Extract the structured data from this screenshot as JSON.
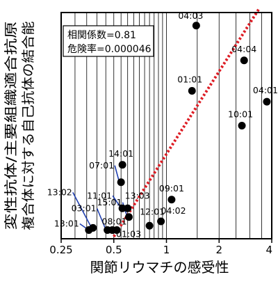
{
  "chart_data": {
    "type": "scatter",
    "xlabel": "関節リウマチの感受性",
    "ylabel_lines": [
      "変性抗体/主要組織適合抗原",
      "複合体に対する自己抗体の結合能"
    ],
    "xscale": "log",
    "xlim": [
      0.25,
      4
    ],
    "xticks": [
      {
        "value": 0.25,
        "label": "0.25"
      },
      {
        "value": 0.5,
        "label": "0.5"
      },
      {
        "value": 1,
        "label": "1"
      },
      {
        "value": 2,
        "label": "2"
      },
      {
        "value": 4,
        "label": "4"
      }
    ],
    "stats_box": {
      "line1": "相関係数=0.81",
      "line2": "危険率=0.000046"
    },
    "colors": {
      "point": "#000000",
      "trend": "#dd1c24",
      "leader": "#1f3fb0"
    },
    "points": [
      {
        "label": "04:03",
        "x": 1.48,
        "y": 0.94
      },
      {
        "label": "04:04",
        "x": 2.78,
        "y": 0.78
      },
      {
        "label": "04:01",
        "x": 3.75,
        "y": 0.59
      },
      {
        "label": "01:01",
        "x": 1.4,
        "y": 0.64
      },
      {
        "label": "10:01",
        "x": 2.7,
        "y": 0.48
      },
      {
        "label": "14:01",
        "x": 0.56,
        "y": 0.3
      },
      {
        "label": "07:01",
        "x": 0.55,
        "y": 0.22
      },
      {
        "label": "09:01",
        "x": 1.07,
        "y": 0.14
      },
      {
        "label": "11:01",
        "x": 0.56,
        "y": 0.1
      },
      {
        "label": "13:03",
        "x": 0.6,
        "y": 0.1
      },
      {
        "label": "15:01",
        "x": 0.61,
        "y": 0.06
      },
      {
        "label": "12:01",
        "x": 0.8,
        "y": 0.02
      },
      {
        "label": "04:02",
        "x": 0.93,
        "y": 0.04
      },
      {
        "label": "13:02",
        "x": 0.38,
        "y": 0.01
      },
      {
        "label": "03:01",
        "x": 0.46,
        "y": 0.0
      },
      {
        "label": "13:01",
        "x": 0.36,
        "y": 0.0
      },
      {
        "label": "08:01",
        "x": 0.49,
        "y": 0.0
      },
      {
        "label": "01:03",
        "x": 0.52,
        "y": 0.0
      }
    ],
    "trendline": {
      "x": [
        0.5,
        3.4
      ],
      "y": [
        -0.03,
        1.02
      ]
    }
  }
}
